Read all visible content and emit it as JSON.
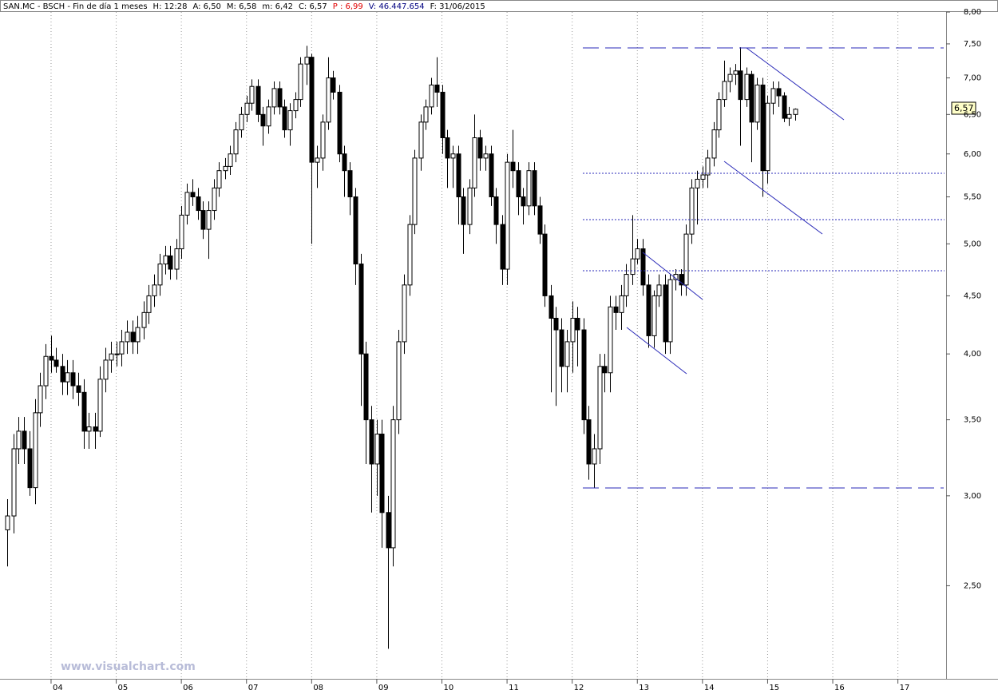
{
  "chart_data": {
    "type": "candlestick",
    "header_items": [
      "SAN.MC - BSCH - Fin de día 1 meses",
      "H: 12:28",
      "A: 6,50",
      "M: 6,58",
      "m: 6,42",
      "C: 6,57",
      "P : 6,99",
      "V: 46.447.654",
      "F: 31/06/2015"
    ],
    "last_price_label": "6,57",
    "watermark": "www.visualchart.com",
    "log_scale": true,
    "grid": true,
    "color_up": "#ffffff",
    "color_down": "#000000",
    "xlim": [
      2003.216,
      2017.74
    ],
    "xticks": [
      {
        "value": 2004,
        "label": "04"
      },
      {
        "value": 2005,
        "label": "05"
      },
      {
        "value": 2006,
        "label": "06"
      },
      {
        "value": 2007,
        "label": "07"
      },
      {
        "value": 2008,
        "label": "08"
      },
      {
        "value": 2009,
        "label": "09"
      },
      {
        "value": 2010,
        "label": "10"
      },
      {
        "value": 2011,
        "label": "11"
      },
      {
        "value": 2012,
        "label": "12"
      },
      {
        "value": 2013,
        "label": "13"
      },
      {
        "value": 2014,
        "label": "14"
      },
      {
        "value": 2015,
        "label": "15"
      },
      {
        "value": 2016,
        "label": "16"
      },
      {
        "value": 2017,
        "label": "17"
      }
    ],
    "ylim": [
      2.07,
      8.04
    ],
    "yticks": [
      {
        "value": 2.5,
        "label": "2,50"
      },
      {
        "value": 3,
        "label": "3,00"
      },
      {
        "value": 3.5,
        "label": "3,50"
      },
      {
        "value": 4,
        "label": "4,00"
      },
      {
        "value": 4.5,
        "label": "4,50"
      },
      {
        "value": 5,
        "label": "5,00"
      },
      {
        "value": 5.5,
        "label": "5,50"
      },
      {
        "value": 6,
        "label": "6,00"
      },
      {
        "value": 6.5,
        "label": "6,50"
      },
      {
        "value": 7,
        "label": "7,00"
      },
      {
        "value": 7.5,
        "label": "7,50"
      },
      {
        "value": 8,
        "label": "8,00"
      }
    ],
    "x": [
      2003.33,
      2003.42,
      2003.5,
      2003.58,
      2003.67,
      2003.75,
      2003.83,
      2003.92,
      2004,
      2004.08,
      2004.17,
      2004.25,
      2004.33,
      2004.42,
      2004.5,
      2004.58,
      2004.67,
      2004.75,
      2004.83,
      2004.92,
      2005,
      2005.08,
      2005.17,
      2005.25,
      2005.33,
      2005.42,
      2005.5,
      2005.58,
      2005.67,
      2005.75,
      2005.83,
      2005.92,
      2006,
      2006.08,
      2006.17,
      2006.25,
      2006.33,
      2006.42,
      2006.5,
      2006.58,
      2006.67,
      2006.75,
      2006.83,
      2006.92,
      2007,
      2007.08,
      2007.17,
      2007.25,
      2007.33,
      2007.42,
      2007.5,
      2007.58,
      2007.67,
      2007.75,
      2007.83,
      2007.92,
      2008,
      2008.08,
      2008.17,
      2008.25,
      2008.33,
      2008.42,
      2008.5,
      2008.58,
      2008.67,
      2008.75,
      2008.83,
      2008.92,
      2009,
      2009.08,
      2009.17,
      2009.25,
      2009.33,
      2009.42,
      2009.5,
      2009.58,
      2009.67,
      2009.75,
      2009.83,
      2009.92,
      2010,
      2010.08,
      2010.17,
      2010.25,
      2010.33,
      2010.42,
      2010.5,
      2010.58,
      2010.67,
      2010.75,
      2010.83,
      2010.92,
      2011,
      2011.08,
      2011.17,
      2011.25,
      2011.33,
      2011.42,
      2011.5,
      2011.58,
      2011.67,
      2011.75,
      2011.83,
      2011.92,
      2012,
      2012.08,
      2012.17,
      2012.25,
      2012.33,
      2012.42,
      2012.5,
      2012.58,
      2012.67,
      2012.75,
      2012.83,
      2012.92,
      2013,
      2013.08,
      2013.17,
      2013.25,
      2013.33,
      2013.42,
      2013.5,
      2013.58,
      2013.67,
      2013.75,
      2013.83,
      2013.92,
      2014,
      2014.08,
      2014.17,
      2014.25,
      2014.33,
      2014.42,
      2014.5,
      2014.58,
      2014.67,
      2014.75,
      2014.83,
      2014.92,
      2015,
      2015.08,
      2015.17,
      2015.25,
      2015.33,
      2015.42
    ],
    "open": [
      2.8,
      2.88,
      3.3,
      3.42,
      3.3,
      3.05,
      3.55,
      3.75,
      3.98,
      3.95,
      3.9,
      3.78,
      3.85,
      3.75,
      3.7,
      3.42,
      3.45,
      3.42,
      3.8,
      3.95,
      4.0,
      4.0,
      4.1,
      4.18,
      4.1,
      4.22,
      4.35,
      4.5,
      4.6,
      4.8,
      4.88,
      4.75,
      4.95,
      5.3,
      5.55,
      5.5,
      5.35,
      5.15,
      5.35,
      5.6,
      5.8,
      5.85,
      6.0,
      6.3,
      6.5,
      6.65,
      6.88,
      6.5,
      6.35,
      6.6,
      6.85,
      6.6,
      6.3,
      6.55,
      6.7,
      7.2,
      7.3,
      5.9,
      5.95,
      6.4,
      7.0,
      6.8,
      6.0,
      5.8,
      5.5,
      4.8,
      4.0,
      3.5,
      3.2,
      3.4,
      2.9,
      2.7,
      3.5,
      4.1,
      4.6,
      5.2,
      5.95,
      6.4,
      6.6,
      6.9,
      6.8,
      6.2,
      5.95,
      6.0,
      5.5,
      5.2,
      5.6,
      6.2,
      5.95,
      6.0,
      5.5,
      5.2,
      4.75,
      5.9,
      5.8,
      5.5,
      5.4,
      5.8,
      5.4,
      5.1,
      4.5,
      4.3,
      4.2,
      3.9,
      4.1,
      4.3,
      4.2,
      3.5,
      3.2,
      3.3,
      3.9,
      3.85,
      4.4,
      4.35,
      4.5,
      4.7,
      4.85,
      4.95,
      4.6,
      4.15,
      4.5,
      4.6,
      4.1,
      4.65,
      4.7,
      4.6,
      5.1,
      5.6,
      5.7,
      5.75,
      5.95,
      6.3,
      6.7,
      6.95,
      7.05,
      7.1,
      6.7,
      7.05,
      6.4,
      6.9,
      5.8,
      6.65,
      6.85,
      6.75,
      6.45,
      6.5
    ],
    "high": [
      2.98,
      3.4,
      3.52,
      3.52,
      3.42,
      3.65,
      3.85,
      4.08,
      4.15,
      4.05,
      4.0,
      3.95,
      3.95,
      3.85,
      3.8,
      3.55,
      3.55,
      3.9,
      4.05,
      4.1,
      4.1,
      4.2,
      4.28,
      4.28,
      4.32,
      4.45,
      4.6,
      4.7,
      4.9,
      4.98,
      4.98,
      5.05,
      5.4,
      5.65,
      5.7,
      5.6,
      5.45,
      5.45,
      5.7,
      5.9,
      5.95,
      6.1,
      6.4,
      6.6,
      6.75,
      6.98,
      6.98,
      6.6,
      6.7,
      6.95,
      6.95,
      6.7,
      6.65,
      6.8,
      7.3,
      7.47,
      7.35,
      6.1,
      6.5,
      7.3,
      7.1,
      6.9,
      6.1,
      5.9,
      5.6,
      4.9,
      4.1,
      3.6,
      3.5,
      3.5,
      3.0,
      3.6,
      4.2,
      4.7,
      5.3,
      6.05,
      6.5,
      6.7,
      7.0,
      7.3,
      6.9,
      6.3,
      6.1,
      6.1,
      5.6,
      5.7,
      6.5,
      6.3,
      6.1,
      6.1,
      5.6,
      5.3,
      6.0,
      6.3,
      5.9,
      5.6,
      5.9,
      5.9,
      5.5,
      5.2,
      4.6,
      4.4,
      4.3,
      4.2,
      4.45,
      4.4,
      4.3,
      3.6,
      3.4,
      4.0,
      4.0,
      4.5,
      4.5,
      4.6,
      4.8,
      5.3,
      5.05,
      5.05,
      4.7,
      4.55,
      4.7,
      4.7,
      4.7,
      4.75,
      4.75,
      5.2,
      5.7,
      5.8,
      5.85,
      6.05,
      6.4,
      6.8,
      7.25,
      7.15,
      7.2,
      7.45,
      7.15,
      7.1,
      7.0,
      7.0,
      6.75,
      6.95,
      6.95,
      6.8,
      6.6,
      6.58
    ],
    "low": [
      2.6,
      2.78,
      3.2,
      3.2,
      3.0,
      2.95,
      3.45,
      3.65,
      3.85,
      3.85,
      3.68,
      3.68,
      3.65,
      3.6,
      3.3,
      3.3,
      3.3,
      3.38,
      3.7,
      3.85,
      3.9,
      3.9,
      4.0,
      4.0,
      4.0,
      4.12,
      4.25,
      4.4,
      4.5,
      4.7,
      4.65,
      4.65,
      4.85,
      5.2,
      5.4,
      5.25,
      5.05,
      4.85,
      5.25,
      5.5,
      5.7,
      5.75,
      5.9,
      6.2,
      6.4,
      6.55,
      6.4,
      6.1,
      6.25,
      6.5,
      6.5,
      6.2,
      6.1,
      6.45,
      6.6,
      6.9,
      5.0,
      5.6,
      5.8,
      6.3,
      6.7,
      5.9,
      5.5,
      5.3,
      4.6,
      3.6,
      3.2,
      2.9,
      3.0,
      2.7,
      2.2,
      2.6,
      3.4,
      4.0,
      4.5,
      5.1,
      5.8,
      6.3,
      6.5,
      6.6,
      6.0,
      5.6,
      5.6,
      5.2,
      4.9,
      5.1,
      5.5,
      5.8,
      5.8,
      5.4,
      5.0,
      4.6,
      4.6,
      5.6,
      5.3,
      5.2,
      5.3,
      5.3,
      5.0,
      4.4,
      3.7,
      3.6,
      3.7,
      3.7,
      3.85,
      3.9,
      3.4,
      3.1,
      3.05,
      3.2,
      3.7,
      3.7,
      4.2,
      4.2,
      4.4,
      4.6,
      4.8,
      4.5,
      4.05,
      4.05,
      4.4,
      4.0,
      4.0,
      4.55,
      4.5,
      4.5,
      5.0,
      5.2,
      5.6,
      5.6,
      5.85,
      6.2,
      6.6,
      6.8,
      6.9,
      6.1,
      6.6,
      5.9,
      6.3,
      5.5,
      5.65,
      6.5,
      6.6,
      6.4,
      6.35,
      6.42
    ],
    "close": [
      2.88,
      3.3,
      3.42,
      3.3,
      3.05,
      3.55,
      3.75,
      3.98,
      3.95,
      3.9,
      3.78,
      3.85,
      3.75,
      3.7,
      3.42,
      3.45,
      3.42,
      3.8,
      3.95,
      4.0,
      4.0,
      4.1,
      4.18,
      4.1,
      4.22,
      4.35,
      4.5,
      4.6,
      4.8,
      4.88,
      4.75,
      4.95,
      5.3,
      5.55,
      5.5,
      5.35,
      5.15,
      5.35,
      5.6,
      5.8,
      5.85,
      6.0,
      6.3,
      6.5,
      6.65,
      6.88,
      6.5,
      6.35,
      6.6,
      6.85,
      6.6,
      6.3,
      6.55,
      6.7,
      7.2,
      7.3,
      5.9,
      5.95,
      6.4,
      7.0,
      6.8,
      6.0,
      5.8,
      5.5,
      4.8,
      4.0,
      3.5,
      3.2,
      3.4,
      2.9,
      2.7,
      3.5,
      4.1,
      4.6,
      5.2,
      5.95,
      6.4,
      6.6,
      6.9,
      6.8,
      6.2,
      5.95,
      6.0,
      5.5,
      5.2,
      5.6,
      6.2,
      5.95,
      6.0,
      5.5,
      5.2,
      4.75,
      5.9,
      5.8,
      5.5,
      5.4,
      5.8,
      5.4,
      5.1,
      4.5,
      4.3,
      4.2,
      3.9,
      4.1,
      4.3,
      4.2,
      3.5,
      3.2,
      3.3,
      3.9,
      3.85,
      4.4,
      4.35,
      4.5,
      4.7,
      4.85,
      4.95,
      4.6,
      4.15,
      4.5,
      4.6,
      4.1,
      4.65,
      4.7,
      4.6,
      5.1,
      5.6,
      5.7,
      5.75,
      5.95,
      6.3,
      6.7,
      6.95,
      7.05,
      7.1,
      6.7,
      7.05,
      6.4,
      6.9,
      5.8,
      6.65,
      6.85,
      6.75,
      6.45,
      6.5,
      6.57
    ]
  }
}
